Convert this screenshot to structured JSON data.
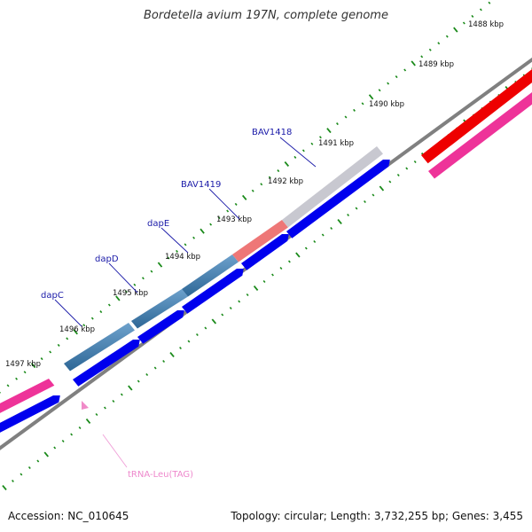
{
  "title": "Bordetella avium 197N, complete genome",
  "footer": {
    "accession": "Accession: NC_010645",
    "summary": "Topology: circular; Length: 3,732,255 bp; Genes: 3,455"
  },
  "ticks": [
    "1488 kbp",
    "1489 kbp",
    "1490 kbp",
    "1491 kbp",
    "1492 kbp",
    "1493 kbp",
    "1494 kbp",
    "1495 kbp",
    "1496 kbp",
    "1497 kbp"
  ],
  "genes": [
    {
      "id": "BAV1418",
      "label": "BAV1418"
    },
    {
      "id": "BAV1419",
      "label": "BAV1419"
    },
    {
      "id": "dapE",
      "label": "dapE"
    },
    {
      "id": "dapD",
      "label": "dapD"
    },
    {
      "id": "dapC",
      "label": "dapC"
    }
  ],
  "trna": {
    "label": "tRNA-Leu(TAG)"
  },
  "colors": {
    "backbone": "#808080",
    "tick": "#1a8a1a",
    "cds": "#0000ee",
    "gene_steelblue": "#4a82b0",
    "gene_salmon": "#ee7777",
    "gene_grey": "#c8c8d0",
    "feature_red": "#ee0000",
    "feature_pink": "#ee3399",
    "gene_label": "#1a1aa8",
    "trna_label": "#ee88cc"
  }
}
